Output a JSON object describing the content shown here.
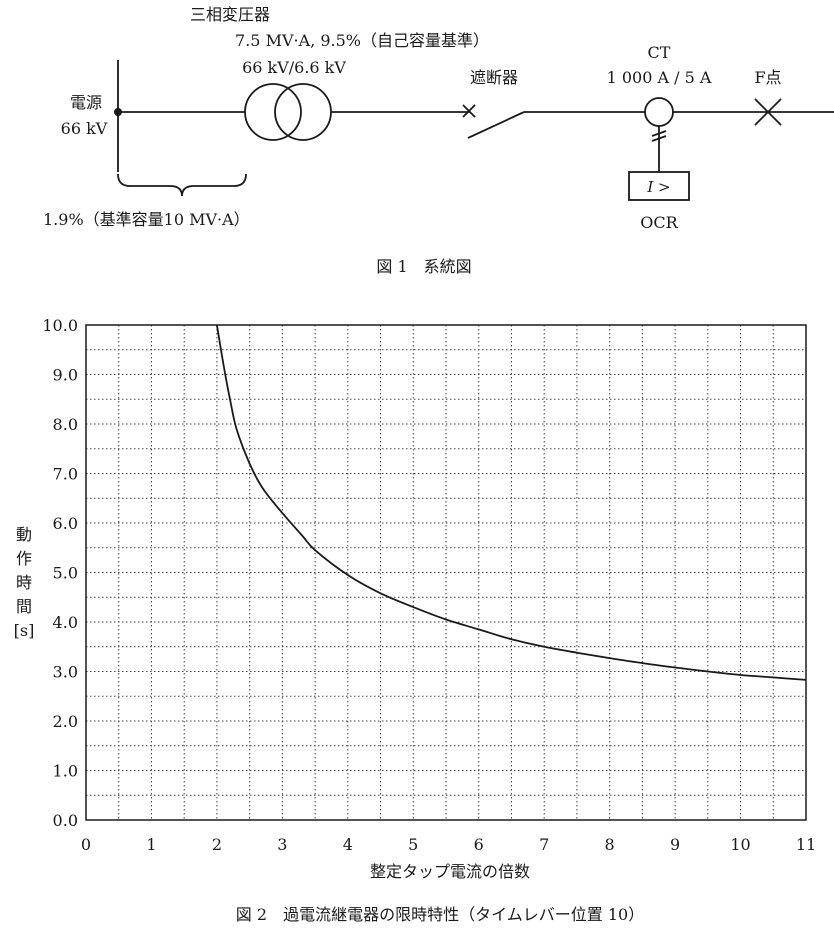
{
  "diagram": {
    "transformer_name": "三相変圧器",
    "transformer_rating": "7.5 MV·A, 9.5%（自己容量基準）",
    "transformer_voltage": "66 kV/6.6 kV",
    "source_label": "電源",
    "source_voltage": "66 kV",
    "source_impedance": "1.9%（基準容量10 MV·A）",
    "breaker_label": "遮断器",
    "ct_label": "CT",
    "ct_ratio": "1 000 A / 5 A",
    "fault_label": "F点",
    "relay_symbol": "I >",
    "relay_label": "OCR",
    "caption": "図 1　系統図"
  },
  "chart_data": {
    "type": "line",
    "caption": "図 2　過電流継電器の限時特性（タイムレバー位置 10）",
    "xlabel": "整定タップ電流の倍数",
    "ylabel_chars": [
      "動",
      "作",
      "時",
      "間",
      "[s]"
    ],
    "xlim": [
      0,
      11
    ],
    "ylim": [
      0,
      10
    ],
    "x_ticks": [
      "0",
      "1",
      "2",
      "3",
      "4",
      "5",
      "6",
      "7",
      "8",
      "9",
      "10",
      "11"
    ],
    "y_ticks": [
      "0.0",
      "1.0",
      "2.0",
      "3.0",
      "4.0",
      "5.0",
      "6.0",
      "7.0",
      "8.0",
      "9.0",
      "10.0"
    ],
    "grid": true,
    "series": [
      {
        "x": [
          2.0,
          2.1,
          2.2,
          2.3,
          2.5,
          2.7,
          3.0,
          3.3,
          3.5,
          4.0,
          4.5,
          5.0,
          5.5,
          6.0,
          6.5,
          7.0,
          7.5,
          8.0,
          8.5,
          9.0,
          9.5,
          10.0,
          10.5,
          11.0
        ],
        "y": [
          10.0,
          9.2,
          8.5,
          7.9,
          7.2,
          6.7,
          6.2,
          5.75,
          5.45,
          4.95,
          4.58,
          4.3,
          4.05,
          3.85,
          3.65,
          3.5,
          3.38,
          3.27,
          3.17,
          3.08,
          3.0,
          2.93,
          2.88,
          2.83
        ]
      }
    ]
  }
}
